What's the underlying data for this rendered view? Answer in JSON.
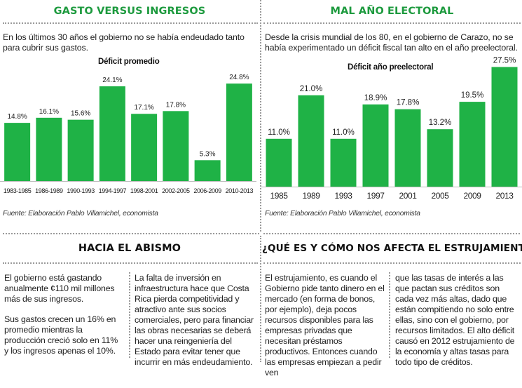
{
  "colors": {
    "accent": "#1d9a3e",
    "bar": "#1fb246",
    "text": "#222222"
  },
  "left_top": {
    "heading": "GASTO VERSUS INGRESOS",
    "intro": "En los últimos 30 años el gobierno no se había endeudado tanto para cubrir sus gastos.",
    "source": "Fuente: Elaboración Pablo Villamichel, economista"
  },
  "right_top": {
    "heading": "MAL AÑO ELECTORAL",
    "intro": "Desde la crisis mundial de los 80, en el gobierno de Carazo, no se había experimentado un déficit fiscal tan alto en el año preelectoral.",
    "source": "Fuente: Elaboración Pablo Villamichel, economista"
  },
  "left_bottom": {
    "heading": "HACIA EL ABISMO",
    "col1_p1": "El gobierno está gastando anualmente ¢110 mil millones más de sus ingresos.",
    "col1_p2": "Sus gastos crecen un 16% en promedio mientras la producción creció solo en 11% y los ingresos apenas el 10%.",
    "col2_p1": "La falta de inversión en infraestructura hace que Costa Rica pierda competitividad y atractivo ante sus socios comerciales, pero para financiar las obras necesarias se deberá hacer una reingeniería del Estado para evitar tener que incurrir en más endeudamiento."
  },
  "right_bottom": {
    "heading": "¿QUÉ ES Y CÓMO NOS AFECTA EL ESTRUJAMIENTO?",
    "col1_p1": "El estrujamiento, es cuando el Gobierno pide tanto dinero en el mercado (en forma de bonos, por ejemplo), deja pocos recursos disponibles para las empresas privadas que necesitan préstamos productivos. Entonces cuando las empresas empiezan a pedir ven",
    "col2_p1": "que las tasas de interés a las que pactan sus créditos son cada vez más altas, dado que están compitiendo no solo entre ellas, sino con el gobierno, por recursos limitados. El alto déficit causó en 2012 estrujamiento de la economía y altas tasas para todo tipo de créditos."
  },
  "chart_data": [
    {
      "type": "bar",
      "title": "Déficit promedio",
      "categories": [
        "1983-1985",
        "1986-1989",
        "1990-1993",
        "1994-1997",
        "1998-2001",
        "2002-2005",
        "2006-2009",
        "2010-2013"
      ],
      "values": [
        14.8,
        16.1,
        15.6,
        24.1,
        17.1,
        17.8,
        5.3,
        24.8
      ],
      "labels": [
        "14.8%",
        "16.1%",
        "15.6%",
        "24.1%",
        "17.1%",
        "17.8%",
        "5.3%",
        "24.8%"
      ],
      "ylim": [
        0,
        30
      ],
      "grid": false
    },
    {
      "type": "bar",
      "title": "Déficit año preelectoral",
      "categories": [
        "1985",
        "1989",
        "1993",
        "1997",
        "2001",
        "2005",
        "2009",
        "2013"
      ],
      "values": [
        11.0,
        21.0,
        11.0,
        18.9,
        17.8,
        13.2,
        19.5,
        27.5
      ],
      "labels": [
        "11.0%",
        "21.0%",
        "11.0%",
        "18.9%",
        "17.8%",
        "13.2%",
        "19.5%",
        "27.5%"
      ],
      "ylim": [
        0,
        30
      ],
      "grid": false
    }
  ]
}
